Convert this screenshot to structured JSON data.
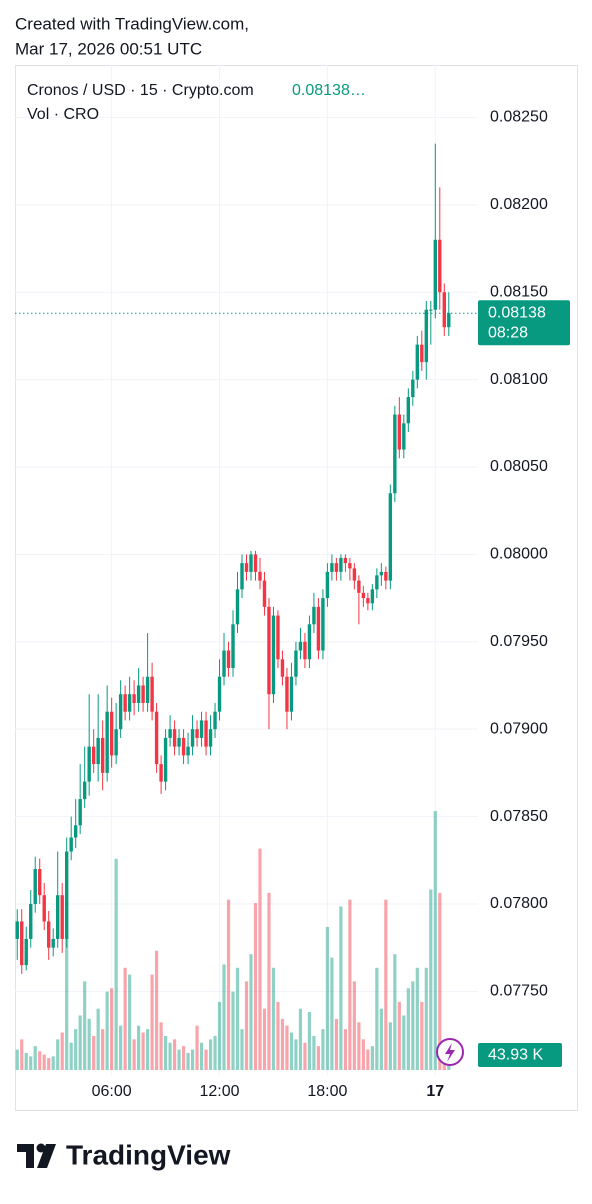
{
  "header": {
    "line1": "Created with TradingView.com,",
    "line2": "Mar 17, 2026 00:51 UTC"
  },
  "brand": "TradingView",
  "chart_data": {
    "type": "candlestick",
    "title": "Cronos / USD · 15 · Crypto.com",
    "legend_price": "0.08138…",
    "volume_title": "Vol · CRO",
    "up_color": "#089981",
    "down_color": "#f23645",
    "open": [
      0.0778,
      0.0779,
      0.07765,
      0.0778,
      0.078,
      0.0782,
      0.07805,
      0.0779,
      0.07775,
      0.0778,
      0.07805,
      0.0778,
      0.0783,
      0.07838,
      0.07845,
      0.0786,
      0.0787,
      0.0789,
      0.0788,
      0.07895,
      0.07875,
      0.0791,
      0.07885,
      0.079,
      0.0792,
      0.0791,
      0.0792,
      0.07915,
      0.07925,
      0.07915,
      0.0793,
      0.0791,
      0.0788,
      0.0787,
      0.07895,
      0.079,
      0.0789,
      0.07895,
      0.07885,
      0.0789,
      0.079,
      0.07895,
      0.07905,
      0.0789,
      0.079,
      0.0791,
      0.0793,
      0.07945,
      0.07935,
      0.0796,
      0.0798,
      0.07995,
      0.0799,
      0.08,
      0.0799,
      0.07985,
      0.0797,
      0.0792,
      0.07965,
      0.0794,
      0.0793,
      0.0791,
      0.0793,
      0.07945,
      0.0795,
      0.0794,
      0.0796,
      0.0797,
      0.07945,
      0.07975,
      0.0799,
      0.07995,
      0.0799,
      0.07998,
      0.07995,
      0.07992,
      0.07985,
      0.07978,
      0.07975,
      0.07972,
      0.0798,
      0.07988,
      0.0799,
      0.07985,
      0.08035,
      0.0808,
      0.0806,
      0.08075,
      0.0809,
      0.081,
      0.0812,
      0.0811,
      0.0814,
      0.0814,
      0.0818,
      0.0815,
      0.0813
    ],
    "high": [
      0.07797,
      0.07797,
      0.07787,
      0.07808,
      0.07827,
      0.07826,
      0.07812,
      0.07796,
      0.07786,
      0.0783,
      0.07812,
      0.07838,
      0.0785,
      0.0786,
      0.0788,
      0.0789,
      0.0792,
      0.079,
      0.0792,
      0.07905,
      0.07925,
      0.07918,
      0.07915,
      0.07928,
      0.07925,
      0.0793,
      0.07928,
      0.07935,
      0.0793,
      0.07955,
      0.07938,
      0.07915,
      0.07885,
      0.079,
      0.07908,
      0.07905,
      0.079,
      0.079,
      0.07898,
      0.07908,
      0.07905,
      0.0791,
      0.0791,
      0.07908,
      0.07915,
      0.0794,
      0.07955,
      0.0795,
      0.07968,
      0.0799,
      0.08,
      0.08,
      0.08002,
      0.08002,
      0.07998,
      0.0799,
      0.07975,
      0.0797,
      0.07968,
      0.07945,
      0.07935,
      0.07938,
      0.0795,
      0.07958,
      0.07955,
      0.07965,
      0.07978,
      0.07975,
      0.0798,
      0.07995,
      0.08,
      0.07998,
      0.08,
      0.08,
      0.07998,
      0.07995,
      0.07988,
      0.07982,
      0.07978,
      0.07983,
      0.07992,
      0.07995,
      0.07993,
      0.0804,
      0.08085,
      0.0809,
      0.0808,
      0.08095,
      0.08105,
      0.08125,
      0.08128,
      0.08145,
      0.08145,
      0.08235,
      0.0821,
      0.08155,
      0.0815
    ],
    "low": [
      0.07768,
      0.0776,
      0.07762,
      0.07775,
      0.07795,
      0.078,
      0.07785,
      0.07768,
      0.0777,
      0.07775,
      0.07772,
      0.07775,
      0.07825,
      0.07832,
      0.0784,
      0.07855,
      0.07862,
      0.07875,
      0.0787,
      0.07865,
      0.0787,
      0.07878,
      0.0788,
      0.07895,
      0.07905,
      0.07905,
      0.07908,
      0.0791,
      0.0791,
      0.0791,
      0.07905,
      0.07875,
      0.07863,
      0.07865,
      0.0789,
      0.07885,
      0.07885,
      0.0788,
      0.0788,
      0.07885,
      0.0789,
      0.0789,
      0.07885,
      0.07885,
      0.07895,
      0.07905,
      0.07925,
      0.0793,
      0.0793,
      0.07955,
      0.07975,
      0.07985,
      0.07985,
      0.07985,
      0.0798,
      0.07965,
      0.079,
      0.07915,
      0.07935,
      0.07925,
      0.079,
      0.07905,
      0.07925,
      0.0794,
      0.07935,
      0.07935,
      0.07955,
      0.0794,
      0.0794,
      0.0797,
      0.07985,
      0.07985,
      0.07985,
      0.0799,
      0.07985,
      0.0798,
      0.0796,
      0.0797,
      0.07968,
      0.07968,
      0.07975,
      0.07982,
      0.0798,
      0.0798,
      0.0803,
      0.08055,
      0.08055,
      0.0807,
      0.08085,
      0.08095,
      0.08105,
      0.081,
      0.0812,
      0.08135,
      0.0814,
      0.08125,
      0.08125
    ],
    "close": [
      0.0779,
      0.07765,
      0.0778,
      0.078,
      0.0782,
      0.07805,
      0.0779,
      0.07775,
      0.0778,
      0.07805,
      0.0778,
      0.0783,
      0.07838,
      0.07845,
      0.0786,
      0.0787,
      0.0789,
      0.0788,
      0.07895,
      0.07875,
      0.0791,
      0.07885,
      0.079,
      0.0792,
      0.0791,
      0.0792,
      0.07915,
      0.07925,
      0.07915,
      0.0793,
      0.0791,
      0.0788,
      0.0787,
      0.07895,
      0.079,
      0.0789,
      0.07895,
      0.07885,
      0.0789,
      0.079,
      0.07895,
      0.07905,
      0.0789,
      0.079,
      0.0791,
      0.0793,
      0.07945,
      0.07935,
      0.0796,
      0.0798,
      0.07995,
      0.0799,
      0.08,
      0.0799,
      0.07985,
      0.0797,
      0.0792,
      0.07965,
      0.0794,
      0.0793,
      0.0791,
      0.0793,
      0.07945,
      0.0795,
      0.0794,
      0.0796,
      0.0797,
      0.07945,
      0.07975,
      0.0799,
      0.07995,
      0.0799,
      0.07998,
      0.07995,
      0.07992,
      0.07985,
      0.07978,
      0.07975,
      0.07972,
      0.0798,
      0.07988,
      0.0799,
      0.07985,
      0.08035,
      0.0808,
      0.0806,
      0.08075,
      0.0809,
      0.081,
      0.0812,
      0.0811,
      0.0814,
      0.0814,
      0.0818,
      0.0815,
      0.0813,
      0.08138
    ],
    "volume": [
      60,
      90,
      50,
      40,
      70,
      55,
      45,
      35,
      40,
      90,
      110,
      400,
      80,
      120,
      160,
      260,
      150,
      100,
      180,
      120,
      230,
      240,
      620,
      130,
      300,
      280,
      90,
      130,
      110,
      120,
      280,
      350,
      140,
      100,
      80,
      90,
      60,
      70,
      50,
      60,
      130,
      80,
      60,
      90,
      100,
      200,
      310,
      500,
      230,
      300,
      120,
      260,
      340,
      490,
      650,
      180,
      520,
      300,
      200,
      150,
      130,
      110,
      90,
      180,
      80,
      170,
      100,
      70,
      120,
      420,
      330,
      150,
      480,
      120,
      500,
      260,
      140,
      90,
      60,
      70,
      300,
      180,
      500,
      140,
      340,
      200,
      160,
      240,
      260,
      300,
      200,
      300,
      530,
      760,
      520,
      55,
      43.93
    ],
    "volume_label": "43.93 K",
    "countdown": "08:28",
    "volume_lim": [
      0,
      2950
    ],
    "ylim": [
      0.07705,
      0.0828
    ],
    "yticks": [
      {
        "value": 0.0775,
        "label": "0.07750"
      },
      {
        "value": 0.078,
        "label": "0.07800"
      },
      {
        "value": 0.0785,
        "label": "0.07850"
      },
      {
        "value": 0.079,
        "label": "0.07900"
      },
      {
        "value": 0.0795,
        "label": "0.07950"
      },
      {
        "value": 0.08,
        "label": "0.08000"
      },
      {
        "value": 0.0805,
        "label": "0.08050"
      },
      {
        "value": 0.081,
        "label": "0.08100"
      },
      {
        "value": 0.0815,
        "label": "0.08150"
      },
      {
        "value": 0.082,
        "label": "0.08200"
      },
      {
        "value": 0.0825,
        "label": "0.08250"
      }
    ],
    "xlim": [
      -0.5,
      102.5
    ],
    "xticks": [
      {
        "value": 21,
        "label": "06:00"
      },
      {
        "value": 45,
        "label": "12:00"
      },
      {
        "value": 69,
        "label": "18:00"
      },
      {
        "value": 93,
        "label": "17"
      }
    ],
    "grid": true
  }
}
